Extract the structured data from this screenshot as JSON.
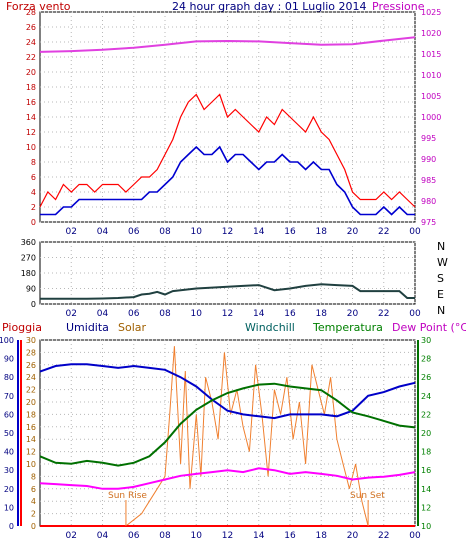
{
  "header": {
    "left_label": "Forza vento",
    "title": "24 hour graph day : 01 Luglio 2014",
    "right_label": "Pressione"
  },
  "colors": {
    "panel_bg": "#ffffff",
    "frame": "#000000",
    "grid": "#b8b8b8",
    "wind": "#ff0000",
    "gust_avg": "#0000d0",
    "pressure": "#e040e0",
    "direction": "#204040",
    "humidity": "#0000c8",
    "solar": "#f08030",
    "windchill": "#006060",
    "temperature": "#007000",
    "dew_point": "#ff00ff",
    "rain": "#ff0000",
    "axis_wind": "#c00000",
    "axis_pressure": "#c000c0",
    "axis_rain": "#c00000",
    "axis_humidity": "#000080",
    "axis_solar": "#a06000",
    "axis_temp": "#008000",
    "hour_axis": "#000080"
  },
  "chart_data": [
    {
      "type": "line",
      "name": "wind-pressure",
      "x_ticks": [
        "02",
        "04",
        "06",
        "08",
        "10",
        "12",
        "14",
        "16",
        "18",
        "20",
        "22",
        "00"
      ],
      "y_left": {
        "label": "Forza vento",
        "min": 0,
        "max": 28,
        "ticks": [
          0,
          2,
          4,
          6,
          8,
          10,
          12,
          14,
          16,
          18,
          20,
          22,
          24,
          26,
          28
        ]
      },
      "y_right": {
        "label": "Pressione",
        "min": 975,
        "max": 1025,
        "ticks": [
          975,
          980,
          985,
          990,
          995,
          1000,
          1005,
          1010,
          1015,
          1020,
          1025
        ]
      },
      "grid": true,
      "series": [
        {
          "axis": "left",
          "x": [
            0,
            0.5,
            1,
            1.5,
            2,
            2.5,
            3,
            3.5,
            4,
            4.5,
            5,
            5.5,
            6,
            6.5,
            7,
            7.5,
            8,
            8.5,
            9,
            9.5,
            10,
            10.5,
            11,
            11.5,
            12,
            12.5,
            13,
            13.5,
            14,
            14.5,
            15,
            15.5,
            16,
            16.5,
            17,
            17.5,
            18,
            18.5,
            19,
            19.5,
            20,
            20.5,
            21,
            21.5,
            22,
            22.5,
            23,
            23.5,
            24
          ],
          "values": [
            2,
            4,
            3,
            5,
            4,
            5,
            5,
            4,
            5,
            5,
            5,
            4,
            5,
            6,
            6,
            7,
            9,
            11,
            14,
            16,
            17,
            15,
            16,
            17,
            14,
            15,
            14,
            13,
            12,
            14,
            13,
            15,
            14,
            13,
            12,
            14,
            12,
            11,
            9,
            7,
            4,
            3,
            3,
            3,
            4,
            3,
            4,
            3,
            2
          ]
        },
        {
          "axis": "left",
          "x": [
            0,
            0.5,
            1,
            1.5,
            2,
            2.5,
            3,
            3.5,
            4,
            4.5,
            5,
            5.5,
            6,
            6.5,
            7,
            7.5,
            8,
            8.5,
            9,
            9.5,
            10,
            10.5,
            11,
            11.5,
            12,
            12.5,
            13,
            13.5,
            14,
            14.5,
            15,
            15.5,
            16,
            16.5,
            17,
            17.5,
            18,
            18.5,
            19,
            19.5,
            20,
            20.5,
            21,
            21.5,
            22,
            22.5,
            23,
            23.5,
            24
          ],
          "values": [
            1,
            1,
            1,
            2,
            2,
            3,
            3,
            3,
            3,
            3,
            3,
            3,
            3,
            3,
            4,
            4,
            5,
            6,
            8,
            9,
            10,
            9,
            9,
            10,
            8,
            9,
            9,
            8,
            7,
            8,
            8,
            9,
            8,
            8,
            7,
            8,
            7,
            7,
            5,
            4,
            2,
            1,
            1,
            1,
            2,
            1,
            2,
            1,
            1
          ]
        },
        {
          "axis": "right",
          "x": [
            0,
            2,
            4,
            6,
            8,
            10,
            12,
            14,
            16,
            18,
            20,
            22,
            24
          ],
          "values": [
            1015.5,
            1015.7,
            1016.0,
            1016.5,
            1017.2,
            1018.0,
            1018.1,
            1018.0,
            1017.6,
            1017.2,
            1017.3,
            1018.2,
            1019.0
          ]
        }
      ]
    },
    {
      "type": "line",
      "name": "wind-direction",
      "x_ticks": [
        "02",
        "04",
        "06",
        "08",
        "10",
        "12",
        "14",
        "16",
        "18",
        "20",
        "22",
        "00"
      ],
      "y_left": {
        "min": 0,
        "max": 360,
        "ticks": [
          0,
          90,
          180,
          270,
          360
        ]
      },
      "y_right_labels": [
        "N",
        "W",
        "S",
        "E",
        "N"
      ],
      "grid": true,
      "series": [
        {
          "axis": "left",
          "x": [
            0,
            1,
            2,
            3,
            4,
            5,
            6,
            6.5,
            7,
            7.5,
            8,
            8.5,
            9,
            9.5,
            10,
            11,
            12,
            13,
            14,
            15,
            16,
            17,
            18,
            19,
            20,
            20.5,
            21,
            22,
            23,
            23.5,
            24
          ],
          "values": [
            30,
            30,
            30,
            30,
            32,
            35,
            40,
            55,
            60,
            70,
            55,
            75,
            80,
            85,
            90,
            95,
            100,
            105,
            110,
            80,
            90,
            105,
            115,
            110,
            105,
            75,
            75,
            75,
            75,
            35,
            35
          ]
        }
      ]
    },
    {
      "type": "line",
      "name": "humidity-solar-temperature",
      "x_ticks": [
        "02",
        "04",
        "06",
        "08",
        "10",
        "12",
        "14",
        "16",
        "18",
        "20",
        "22",
        "00"
      ],
      "y_left_outer": {
        "label": "Pioggia",
        "min": 0,
        "max": 100,
        "ticks": [
          0,
          10,
          20,
          30,
          40,
          50,
          60,
          70,
          80,
          90,
          100
        ]
      },
      "y_left_inner": {
        "label": "Solar",
        "min": 0,
        "max": 30,
        "ticks": [
          0,
          2,
          4,
          6,
          8,
          10,
          12,
          14,
          16,
          18,
          20,
          22,
          24,
          26,
          28,
          30
        ]
      },
      "y_right": {
        "label": "Temperatura",
        "min": 10,
        "max": 30,
        "ticks": [
          10,
          12,
          14,
          16,
          18,
          20,
          22,
          24,
          26,
          28,
          30
        ]
      },
      "legend": [
        "Umidita",
        "Solar",
        "Windchill",
        "Temperatura",
        "Dew Point (°C)"
      ],
      "annotations": [
        "Sun Rise",
        "Sun Set"
      ],
      "grid": true,
      "series": [
        {
          "name": "Umidita",
          "axis": "left_outer",
          "x": [
            0,
            1,
            2,
            3,
            4,
            5,
            6,
            7,
            8,
            9,
            10,
            11,
            12,
            13,
            14,
            15,
            16,
            17,
            18,
            19,
            20,
            21,
            22,
            23,
            24
          ],
          "values": [
            83,
            86,
            87,
            87,
            86,
            85,
            86,
            85,
            84,
            80,
            75,
            68,
            62,
            60,
            59,
            58,
            60,
            60,
            60,
            59,
            62,
            70,
            72,
            75,
            77
          ]
        },
        {
          "name": "Temperatura",
          "axis": "right",
          "x": [
            0,
            1,
            2,
            3,
            4,
            5,
            6,
            7,
            8,
            9,
            10,
            11,
            12,
            13,
            14,
            15,
            16,
            17,
            18,
            19,
            20,
            21,
            22,
            23,
            24
          ],
          "values": [
            17.5,
            16.8,
            16.7,
            17.0,
            16.8,
            16.5,
            16.8,
            17.5,
            19,
            21,
            22.5,
            23.5,
            24.3,
            24.8,
            25.2,
            25.3,
            25.0,
            24.8,
            24.6,
            23.5,
            22.2,
            21.8,
            21.3,
            20.8,
            20.6
          ]
        },
        {
          "name": "Dew Point (°C)",
          "axis": "right",
          "x": [
            0,
            1,
            2,
            3,
            4,
            5,
            6,
            7,
            8,
            9,
            10,
            11,
            12,
            13,
            14,
            15,
            16,
            17,
            18,
            19,
            20,
            21,
            22,
            23,
            24
          ],
          "values": [
            14.6,
            14.5,
            14.4,
            14.3,
            14.0,
            14.0,
            14.2,
            14.6,
            15.0,
            15.4,
            15.6,
            15.8,
            16.0,
            15.8,
            16.2,
            16.0,
            15.6,
            15.8,
            15.6,
            15.4,
            15.0,
            15.2,
            15.3,
            15.5,
            15.8
          ]
        },
        {
          "name": "Solar",
          "axis": "left_inner",
          "x": [
            5.5,
            6,
            6.5,
            7,
            7.5,
            8,
            8.3,
            8.6,
            9,
            9.3,
            9.6,
            10,
            10.3,
            10.6,
            11,
            11.4,
            11.8,
            12.2,
            12.6,
            13,
            13.4,
            13.8,
            14.2,
            14.6,
            15,
            15.4,
            15.8,
            16.2,
            16.6,
            17,
            17.4,
            17.8,
            18.2,
            18.6,
            19,
            19.4,
            19.8,
            20.2,
            20.6,
            21
          ],
          "values": [
            0,
            1,
            2,
            4,
            6,
            8,
            18,
            29,
            10,
            25,
            6,
            18,
            8,
            24,
            20,
            14,
            28,
            18,
            22,
            16,
            12,
            26,
            18,
            8,
            22,
            18,
            24,
            14,
            20,
            10,
            26,
            22,
            18,
            24,
            14,
            10,
            6,
            10,
            4,
            0
          ]
        },
        {
          "name": "Pioggia",
          "axis": "left_outer",
          "x": [
            0,
            24
          ],
          "values": [
            0,
            0
          ]
        }
      ]
    }
  ]
}
